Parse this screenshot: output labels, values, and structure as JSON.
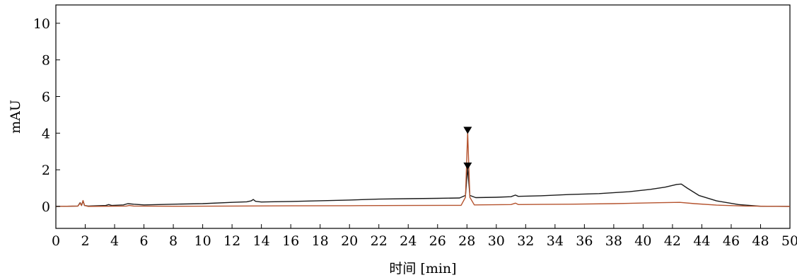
{
  "chart_data": {
    "type": "line",
    "title": "",
    "xlabel": "时间 [min]",
    "ylabel": "mAU",
    "xlim": [
      0,
      50
    ],
    "ylim": [
      -1.2,
      11
    ],
    "grid": false,
    "x_ticks": [
      "0",
      "2",
      "4",
      "6",
      "8",
      "10",
      "12",
      "14",
      "16",
      "18",
      "20",
      "22",
      "24",
      "26",
      "28",
      "30",
      "32",
      "34",
      "36",
      "38",
      "40",
      "42",
      "44",
      "46",
      "48",
      "50"
    ],
    "y_ticks": [
      "0",
      "2",
      "4",
      "6",
      "8",
      "10"
    ],
    "series": [
      {
        "color": "#1a1a1a",
        "points": [
          [
            0,
            0
          ],
          [
            1.5,
            0.02
          ],
          [
            1.65,
            0.2
          ],
          [
            1.75,
            0.05
          ],
          [
            1.85,
            0.3
          ],
          [
            1.95,
            0.05
          ],
          [
            2.2,
            0.02
          ],
          [
            3.4,
            0.05
          ],
          [
            3.6,
            0.1
          ],
          [
            3.8,
            0.05
          ],
          [
            4.6,
            0.08
          ],
          [
            4.9,
            0.15
          ],
          [
            5.3,
            0.12
          ],
          [
            6,
            0.08
          ],
          [
            8,
            0.12
          ],
          [
            10,
            0.15
          ],
          [
            12,
            0.22
          ],
          [
            13,
            0.25
          ],
          [
            13.3,
            0.3
          ],
          [
            13.45,
            0.38
          ],
          [
            13.6,
            0.28
          ],
          [
            14,
            0.24
          ],
          [
            16,
            0.27
          ],
          [
            18,
            0.31
          ],
          [
            20,
            0.35
          ],
          [
            22,
            0.4
          ],
          [
            24,
            0.42
          ],
          [
            26,
            0.44
          ],
          [
            27.5,
            0.46
          ],
          [
            27.9,
            0.6
          ],
          [
            28.05,
            2.1
          ],
          [
            28.2,
            0.6
          ],
          [
            28.6,
            0.48
          ],
          [
            30,
            0.5
          ],
          [
            31,
            0.53
          ],
          [
            31.3,
            0.62
          ],
          [
            31.5,
            0.55
          ],
          [
            33,
            0.58
          ],
          [
            35,
            0.65
          ],
          [
            37,
            0.7
          ],
          [
            39,
            0.8
          ],
          [
            40.5,
            0.93
          ],
          [
            41.5,
            1.05
          ],
          [
            42.3,
            1.2
          ],
          [
            42.6,
            1.22
          ],
          [
            43,
            1.0
          ],
          [
            43.8,
            0.6
          ],
          [
            45,
            0.3
          ],
          [
            46.5,
            0.1
          ],
          [
            48,
            0.01
          ],
          [
            50,
            0.0
          ]
        ]
      },
      {
        "color": "#b5532e",
        "points": [
          [
            0,
            0
          ],
          [
            1.5,
            0.02
          ],
          [
            1.65,
            0.18
          ],
          [
            1.75,
            0.05
          ],
          [
            1.85,
            0.32
          ],
          [
            1.95,
            0.05
          ],
          [
            2.2,
            0
          ],
          [
            4.8,
            0.02
          ],
          [
            5,
            0.05
          ],
          [
            5.3,
            0.02
          ],
          [
            8,
            0.01
          ],
          [
            12,
            0.02
          ],
          [
            16,
            0.03
          ],
          [
            20,
            0.04
          ],
          [
            24,
            0.05
          ],
          [
            27.6,
            0.06
          ],
          [
            27.9,
            0.5
          ],
          [
            28.05,
            4.05
          ],
          [
            28.2,
            0.5
          ],
          [
            28.5,
            0.08
          ],
          [
            31,
            0.1
          ],
          [
            31.3,
            0.18
          ],
          [
            31.5,
            0.1
          ],
          [
            35,
            0.12
          ],
          [
            38,
            0.15
          ],
          [
            41,
            0.2
          ],
          [
            42.5,
            0.22
          ],
          [
            43.5,
            0.15
          ],
          [
            45,
            0.07
          ],
          [
            47,
            0.02
          ],
          [
            50,
            0
          ]
        ]
      }
    ],
    "markers": [
      {
        "x": 28.05,
        "y": 4.15,
        "color": "#000000"
      },
      {
        "x": 28.05,
        "y": 2.2,
        "color": "#000000"
      }
    ]
  }
}
